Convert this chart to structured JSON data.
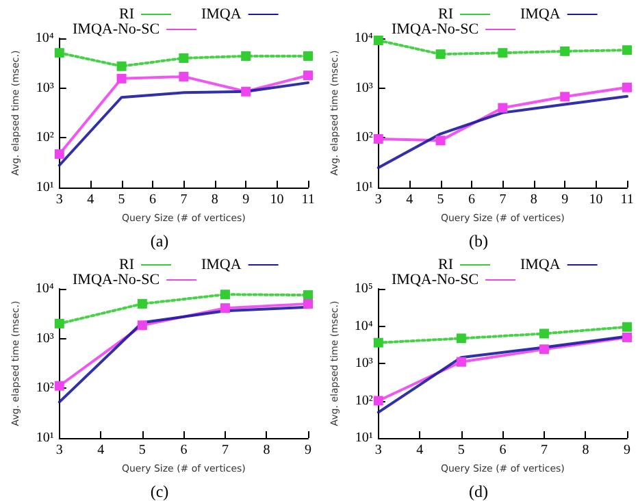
{
  "chart_data": [
    {
      "type": "line",
      "xlabel": "Query Size (# of vertices)",
      "ylabel": "Avg. elapsed time (msec.)",
      "annotations": [
        "(a)"
      ],
      "log": "y",
      "grid": false,
      "legend": "top",
      "xlim": [
        3,
        11
      ],
      "xticks": [
        3,
        4,
        5,
        6,
        7,
        8,
        9,
        10,
        11
      ],
      "ylim": [
        10,
        10000
      ],
      "yticks": [
        {
          "value": 10,
          "label": "10¹"
        },
        {
          "value": 100,
          "label": "10²"
        },
        {
          "value": 1000,
          "label": "10³"
        },
        {
          "value": 10000,
          "label": "10⁴"
        }
      ],
      "x": [
        3,
        5,
        7,
        9,
        11
      ],
      "series": [
        {
          "name": "RI",
          "color": "#33cc33",
          "marker": "square",
          "line_style": "dotted",
          "values": [
            5100,
            2750,
            4000,
            4400,
            4400
          ]
        },
        {
          "name": "IMQA-No-SC",
          "color": "#ee44ee",
          "marker": "square",
          "line_style": "solid",
          "values": [
            47,
            1550,
            1700,
            850,
            1800
          ]
        },
        {
          "name": "IMQA",
          "color": "#1a1aa0",
          "marker": "none",
          "line_style": "solid",
          "values": [
            28,
            650,
            810,
            850,
            1280
          ]
        }
      ]
    },
    {
      "type": "line",
      "xlabel": "Query Size (# of vertices)",
      "ylabel": "Avg. elapsed time (msec.)",
      "annotations": [
        "(b)"
      ],
      "log": "y",
      "grid": false,
      "legend": "top",
      "xlim": [
        3,
        11
      ],
      "xticks": [
        3,
        4,
        5,
        6,
        7,
        8,
        9,
        10,
        11
      ],
      "ylim": [
        10,
        10000
      ],
      "yticks": [
        {
          "value": 10,
          "label": "10¹"
        },
        {
          "value": 100,
          "label": "10²"
        },
        {
          "value": 1000,
          "label": "10³"
        },
        {
          "value": 10000,
          "label": "10⁴"
        }
      ],
      "x": [
        3,
        5,
        7,
        9,
        11
      ],
      "series": [
        {
          "name": "RI",
          "color": "#33cc33",
          "marker": "square",
          "line_style": "dotted",
          "values": [
            9100,
            4800,
            5100,
            5500,
            5800
          ]
        },
        {
          "name": "IMQA-No-SC",
          "color": "#ee44ee",
          "marker": "square",
          "line_style": "solid",
          "values": [
            95,
            88,
            400,
            670,
            1030
          ]
        },
        {
          "name": "IMQA",
          "color": "#1a1aa0",
          "marker": "none",
          "line_style": "solid",
          "values": [
            25,
            120,
            320,
            470,
            680
          ]
        }
      ]
    },
    {
      "type": "line",
      "xlabel": "Query Size (# of vertices)",
      "ylabel": "Avg. elapsed time (msec.)",
      "annotations": [
        "(c)"
      ],
      "log": "y",
      "grid": false,
      "legend": "top",
      "xlim": [
        3,
        9
      ],
      "xticks": [
        3,
        4,
        5,
        6,
        7,
        8,
        9
      ],
      "ylim": [
        10,
        10000
      ],
      "yticks": [
        {
          "value": 10,
          "label": "10¹"
        },
        {
          "value": 100,
          "label": "10²"
        },
        {
          "value": 1000,
          "label": "10³"
        },
        {
          "value": 10000,
          "label": "10⁴"
        }
      ],
      "x": [
        3,
        5,
        7,
        9
      ],
      "series": [
        {
          "name": "RI",
          "color": "#33cc33",
          "marker": "square",
          "line_style": "dotted",
          "values": [
            2000,
            5000,
            7700,
            7500
          ]
        },
        {
          "name": "IMQA-No-SC",
          "color": "#ee44ee",
          "marker": "square",
          "line_style": "solid",
          "values": [
            112,
            1850,
            4100,
            5000
          ]
        },
        {
          "name": "IMQA",
          "color": "#1a1aa0",
          "marker": "none",
          "line_style": "solid",
          "values": [
            53,
            2100,
            3600,
            4300
          ]
        }
      ]
    },
    {
      "type": "line",
      "xlabel": "Query Size (# of vertices)",
      "ylabel": "Avg. elapsed time (msec.)",
      "annotations": [
        "(d)"
      ],
      "log": "y",
      "grid": false,
      "legend": "top",
      "xlim": [
        3,
        9
      ],
      "xticks": [
        3,
        4,
        5,
        6,
        7,
        8,
        9
      ],
      "ylim": [
        10,
        100000
      ],
      "yticks": [
        {
          "value": 10,
          "label": "10¹"
        },
        {
          "value": 100,
          "label": "10²"
        },
        {
          "value": 1000,
          "label": "10³"
        },
        {
          "value": 10000,
          "label": "10⁴"
        },
        {
          "value": 100000,
          "label": "10⁵"
        }
      ],
      "x": [
        3,
        5,
        7,
        9
      ],
      "series": [
        {
          "name": "RI",
          "color": "#33cc33",
          "marker": "square",
          "line_style": "dotted",
          "values": [
            3600,
            4700,
            6300,
            9500
          ]
        },
        {
          "name": "IMQA-No-SC",
          "color": "#ee44ee",
          "marker": "square",
          "line_style": "solid",
          "values": [
            100,
            1100,
            2400,
            5000
          ]
        },
        {
          "name": "IMQA",
          "color": "#1a1aa0",
          "marker": "none",
          "line_style": "solid",
          "values": [
            49,
            1450,
            2700,
            5300
          ]
        }
      ]
    }
  ]
}
